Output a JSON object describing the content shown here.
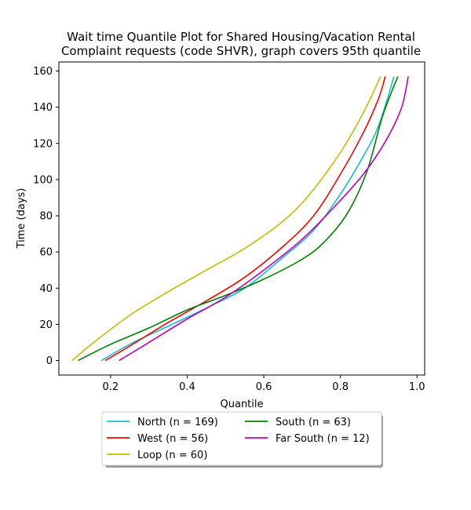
{
  "chart_data": {
    "type": "line",
    "title": [
      "Wait time Quantile Plot for Shared Housing/Vacation Rental",
      "Complaint  requests (code SHVR), graph covers 95th quantile"
    ],
    "xlabel": "Quantile",
    "ylabel": "Time (days)",
    "xlim": [
      0.065,
      1.02
    ],
    "ylim": [
      -8,
      165
    ],
    "xticks": [
      0.2,
      0.4,
      0.6,
      0.8,
      1.0
    ],
    "xtick_labels": [
      "0.2",
      "0.4",
      "0.6",
      "0.8",
      "1.0"
    ],
    "yticks": [
      0,
      20,
      40,
      60,
      80,
      100,
      120,
      140,
      160
    ],
    "ytick_labels": [
      "0",
      "20",
      "40",
      "60",
      "80",
      "100",
      "120",
      "140",
      "160"
    ],
    "grid": false,
    "legend": {
      "placement": "bottom-center",
      "columns": 2
    },
    "series": [
      {
        "name": "North (n = 169)",
        "color": "#17becf",
        "points": [
          [
            0.176,
            0
          ],
          [
            0.25,
            9
          ],
          [
            0.35,
            19
          ],
          [
            0.45,
            29
          ],
          [
            0.55,
            40
          ],
          [
            0.65,
            57
          ],
          [
            0.73,
            72
          ],
          [
            0.8,
            92
          ],
          [
            0.86,
            113
          ],
          [
            0.9,
            130
          ],
          [
            0.94,
            157
          ]
        ]
      },
      {
        "name": "West (n = 56)",
        "color": "#ff0000",
        "points": [
          [
            0.186,
            0
          ],
          [
            0.25,
            8
          ],
          [
            0.35,
            21
          ],
          [
            0.45,
            33
          ],
          [
            0.55,
            46
          ],
          [
            0.65,
            63
          ],
          [
            0.73,
            80
          ],
          [
            0.8,
            103
          ],
          [
            0.86,
            126
          ],
          [
            0.9,
            145
          ],
          [
            0.917,
            157
          ]
        ]
      },
      {
        "name": "Loop (n = 60)",
        "color": "#bfbf00",
        "points": [
          [
            0.1,
            0
          ],
          [
            0.15,
            9
          ],
          [
            0.25,
            25
          ],
          [
            0.35,
            38
          ],
          [
            0.45,
            50
          ],
          [
            0.55,
            62
          ],
          [
            0.65,
            77
          ],
          [
            0.72,
            92
          ],
          [
            0.8,
            115
          ],
          [
            0.86,
            137
          ],
          [
            0.905,
            157
          ]
        ]
      },
      {
        "name": "South (n = 63)",
        "color": "#008000",
        "points": [
          [
            0.115,
            0
          ],
          [
            0.2,
            9
          ],
          [
            0.3,
            18
          ],
          [
            0.4,
            28
          ],
          [
            0.5,
            36
          ],
          [
            0.6,
            45
          ],
          [
            0.7,
            56
          ],
          [
            0.76,
            66
          ],
          [
            0.82,
            82
          ],
          [
            0.87,
            105
          ],
          [
            0.91,
            135
          ],
          [
            0.95,
            157
          ]
        ]
      },
      {
        "name": "Far South (n = 12)",
        "color": "#bf00bf",
        "points": [
          [
            0.222,
            0
          ],
          [
            0.3,
            10
          ],
          [
            0.4,
            23
          ],
          [
            0.5,
            35
          ],
          [
            0.6,
            50
          ],
          [
            0.7,
            67
          ],
          [
            0.78,
            84
          ],
          [
            0.86,
            103
          ],
          [
            0.92,
            122
          ],
          [
            0.96,
            140
          ],
          [
            0.977,
            157
          ]
        ]
      }
    ]
  }
}
